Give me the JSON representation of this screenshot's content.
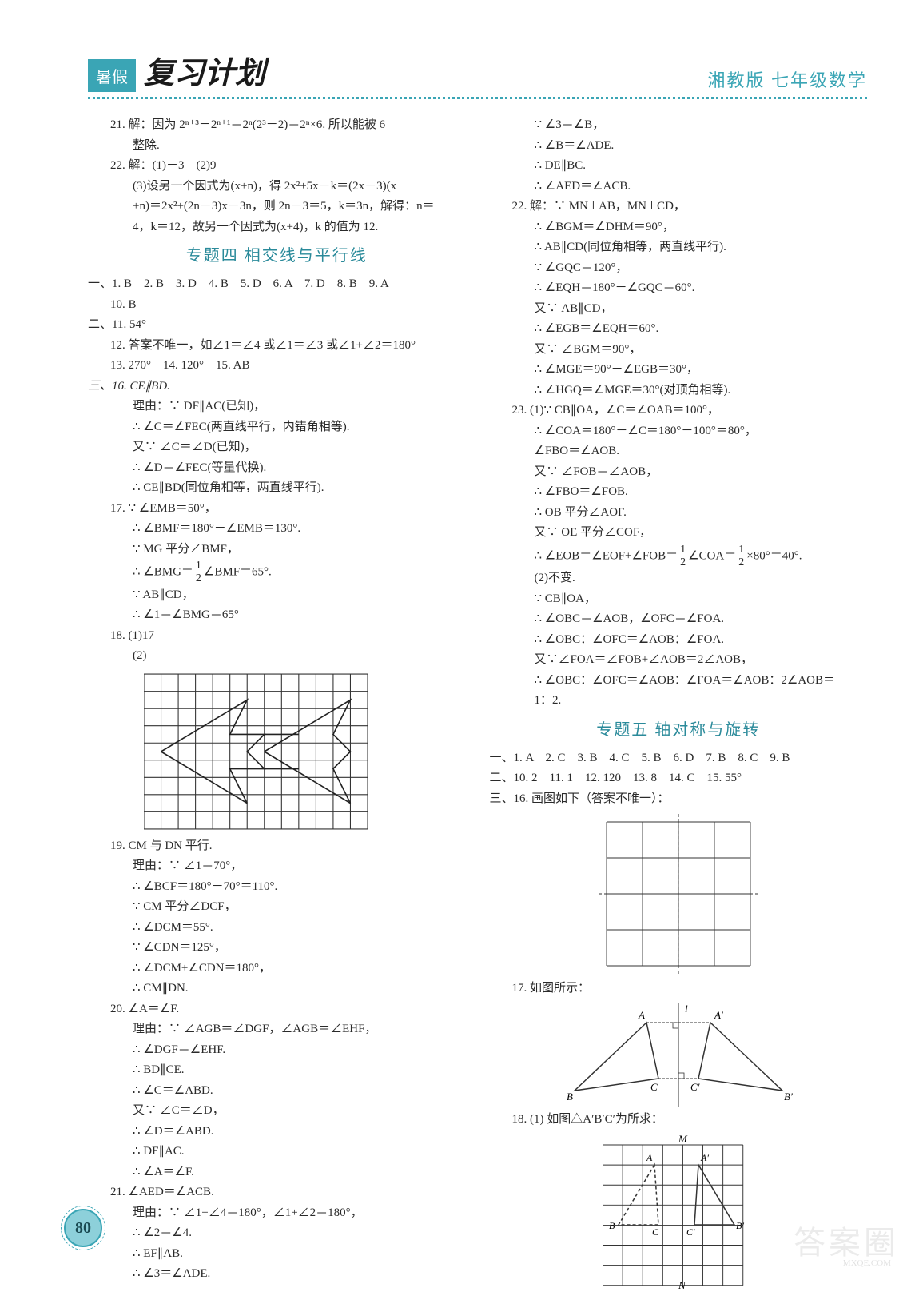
{
  "header": {
    "badge": "暑假",
    "title": "复习计划",
    "subtitle": "湘教版  七年级数学"
  },
  "page_number": "80",
  "watermark": "答案圈",
  "url": "MXQE.COM",
  "section4_title": "专题四  相交线与平行线",
  "section5_title": "专题五  轴对称与旋转",
  "left": {
    "q21": "21. 解：因为 2ⁿ⁺³－2ⁿ⁺¹＝2ⁿ(2³－2)＝2ⁿ×6. 所以能被 6",
    "q21b": "整除.",
    "q22a": "22. 解：(1)－3　(2)9",
    "q22b": "(3)设另一个因式为(x+n)，得 2x²+5x－k＝(2x－3)(x",
    "q22c": "+n)＝2x²+(2n－3)x－3n，则 2n－3＝5，k＝3n，解得：n＝",
    "q22d": "4，k＝12，故另一个因式为(x+4)，k 的值为 12.",
    "sec4_line1": "一、1. B　2. B　3. D　4. B　5. D　6. A　7. D　8. B　9. A",
    "sec4_line1b": "10. B",
    "sec4_line2": "二、11. 54°",
    "sec4_line3": "12. 答案不唯一，如∠1＝∠4 或∠1＝∠3 或∠1+∠2＝180°",
    "sec4_line4": "13. 270°　14. 120°　15. AB",
    "q16a": "三、16. CE∥BD.",
    "q16b": "理由：∵ DF∥AC(已知)，",
    "q16c": "∴ ∠C＝∠FEC(两直线平行，内错角相等).",
    "q16d": "又∵ ∠C＝∠D(已知)，",
    "q16e": "∴ ∠D＝∠FEC(等量代换).",
    "q16f": "∴ CE∥BD(同位角相等，两直线平行).",
    "q17a": "17. ∵ ∠EMB＝50°，",
    "q17b": "∴ ∠BMF＝180°－∠EMB＝130°.",
    "q17c": "∵ MG 平分∠BMF，",
    "q17d1": "∴ ∠BMG＝",
    "q17d2": "∠BMF＝65°.",
    "q17e": "∵ AB∥CD，",
    "q17f": "∴ ∠1＝∠BMG＝65°",
    "q18a": "18. (1)17",
    "q18b": "(2)",
    "q19a": "19. CM 与 DN 平行.",
    "q19b": "理由：∵ ∠1＝70°，",
    "q19c": "∴ ∠BCF＝180°－70°＝110°.",
    "q19d": "∵ CM 平分∠DCF，",
    "q19e": "∴ ∠DCM＝55°.",
    "q19f": "∵ ∠CDN＝125°，",
    "q19g": "∴ ∠DCM+∠CDN＝180°，",
    "q19h": "∴ CM∥DN.",
    "q20a": "20. ∠A＝∠F.",
    "q20b": "理由：∵ ∠AGB＝∠DGF，∠AGB＝∠EHF，",
    "q20c": "∴ ∠DGF＝∠EHF.",
    "q20d": "∴ BD∥CE.",
    "q20e": "∴ ∠C＝∠ABD.",
    "q20f": "又∵ ∠C＝∠D，",
    "q20g": "∴ ∠D＝∠ABD.",
    "q20h": "∴ DF∥AC.",
    "q20i": "∴ ∠A＝∠F.",
    "q21xa": "21. ∠AED＝∠ACB.",
    "q21xb": "理由：∵ ∠1+∠4＝180°，∠1+∠2＝180°，",
    "q21xc": "∴ ∠2＝∠4.",
    "q21xd": "∴ EF∥AB.",
    "q21xe": "∴ ∠3＝∠ADE."
  },
  "right": {
    "r1": "∵ ∠3＝∠B，",
    "r2": "∴ ∠B＝∠ADE.",
    "r3": "∴ DE∥BC.",
    "r4": "∴ ∠AED＝∠ACB.",
    "r22a": "22. 解：∵ MN⊥AB，MN⊥CD，",
    "r22b": "∴ ∠BGM＝∠DHM＝90°，",
    "r22c": "∴ AB∥CD(同位角相等，两直线平行).",
    "r22d": "∵ ∠GQC＝120°，",
    "r22e": "∴ ∠EQH＝180°－∠GQC＝60°.",
    "r22f": "又∵ AB∥CD，",
    "r22g": "∴ ∠EGB＝∠EQH＝60°.",
    "r22h": "又∵ ∠BGM＝90°，",
    "r22i": "∴ ∠MGE＝90°－∠EGB＝30°，",
    "r22j": "∴ ∠HGQ＝∠MGE＝30°(对顶角相等).",
    "r23a": "23. (1)∵ CB∥OA，∠C＝∠OAB＝100°，",
    "r23b": "∴ ∠COA＝180°－∠C＝180°－100°＝80°，",
    "r23c": "∠FBO＝∠AOB.",
    "r23d": "又∵ ∠FOB＝∠AOB，",
    "r23e": "∴ ∠FBO＝∠FOB.",
    "r23f": "∴ OB 平分∠AOF.",
    "r23g": "又∵ OE 平分∠COF，",
    "r23h1": "∴ ∠EOB＝∠EOF+∠FOB＝",
    "r23h2": "∠COA＝",
    "r23h3": "×80°＝40°.",
    "r23i": "(2)不变.",
    "r23j": "∵ CB∥OA，",
    "r23k": "∴ ∠OBC＝∠AOB，∠OFC＝∠FOA.",
    "r23l": "∴ ∠OBC：∠OFC＝∠AOB：∠FOA.",
    "r23m": "又∵∠FOA＝∠FOB+∠AOB＝2∠AOB，",
    "r23n": "∴ ∠OBC：∠OFC＝∠AOB：∠FOA＝∠AOB：2∠AOB＝",
    "r23o": "1：2.",
    "s5l1": "一、1. A　2. C　3. B　4. C　5. B　6. D　7. B　8. C　9. B",
    "s5l2": "二、10. 2　11. 1　12. 120　13. 8　14. C　15. 55°",
    "s5l3": "三、16. 画图如下（答案不唯一）：",
    "s5q17": "17. 如图所示：",
    "s5q18": "18. (1) 如图△A′B′C′为所求："
  },
  "grid18": {
    "cols": 13,
    "rows": 9,
    "cell": 20,
    "stroke": "#333333",
    "fill": "#ffffff"
  },
  "grid16": {
    "cols": 6,
    "rows": 6,
    "cell": 30,
    "stroke": "#333333"
  },
  "grid18b": {
    "cols": 7,
    "rows": 7,
    "cell": 25,
    "stroke": "#333333"
  },
  "tri17": {
    "labels": [
      "A",
      "B",
      "C",
      "A′",
      "B′",
      "C′",
      "l"
    ]
  }
}
